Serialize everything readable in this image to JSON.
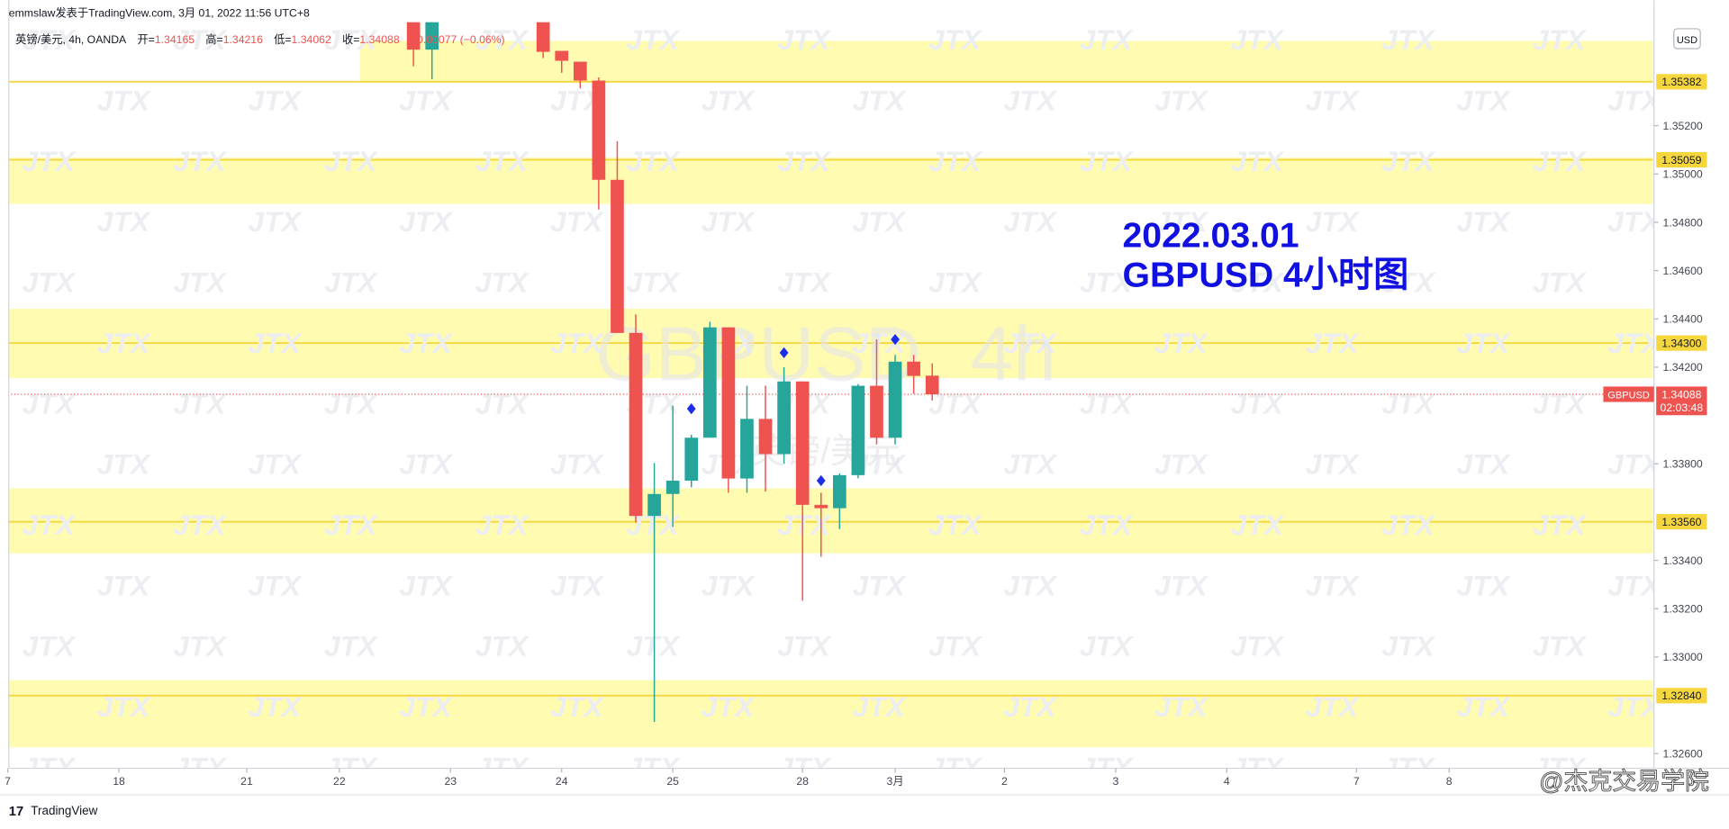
{
  "chart_data": {
    "type": "candlestick",
    "header": "emmslaw发表于TradingView.com, 3月 01, 2022 11:56 UTC+8",
    "legend": {
      "symbol": "英镑/美元, 4h, OANDA",
      "items": [
        {
          "label": "开=",
          "value": 1.34165
        },
        {
          "label": "高=",
          "value": 1.34216
        },
        {
          "label": "低=",
          "value": 1.34062
        },
        {
          "label": "收=",
          "value": 1.34088
        }
      ],
      "change": "−0.00077 (−0.06%)"
    },
    "annotation": [
      "2022.03.01",
      "GBPUSD 4小时图"
    ],
    "annotation_color": "#1010e0",
    "watermark_symbol": "GBPUSD",
    "watermark_interval": "4h",
    "watermark_name": "英镑/美元",
    "watermark_pattern": "JTX",
    "currency": "USD",
    "up_color": "#26a69a",
    "down_color": "#ef5350",
    "x": [
      21.9,
      22.9,
      28.9,
      29.9,
      30.9,
      31.9,
      32.9,
      33.9,
      34.9,
      35.9,
      36.9,
      37.9,
      38.9,
      39.9,
      40.9,
      41.9,
      42.9,
      43.9,
      44.9,
      45.9,
      46.9,
      47.9,
      48.9,
      49.9
    ],
    "open": [
      1.35629,
      1.35515,
      1.35629,
      1.3551,
      1.35465,
      1.35387,
      1.34976,
      1.34342,
      1.33584,
      1.33675,
      1.3373,
      1.33908,
      1.34365,
      1.33739,
      1.33986,
      1.3384,
      1.34141,
      1.3363,
      1.33616,
      1.33753,
      1.34123,
      1.33908,
      1.34223,
      1.34165
    ],
    "high": [
      1.35629,
      1.35629,
      1.35629,
      1.3551,
      1.35465,
      1.354,
      1.35136,
      1.34419,
      1.33803,
      1.34041,
      1.3392,
      1.34388,
      1.34365,
      1.34123,
      1.34123,
      1.342,
      1.34141,
      1.3368,
      1.3376,
      1.3413,
      1.34315,
      1.34251,
      1.34251,
      1.34216
    ],
    "low": [
      1.35446,
      1.35392,
      1.3548,
      1.35419,
      1.35355,
      1.34853,
      1.34342,
      1.33557,
      1.32731,
      1.33539,
      1.33703,
      1.33908,
      1.3368,
      1.3368,
      1.33685,
      1.338,
      1.33233,
      1.33415,
      1.3353,
      1.3374,
      1.3388,
      1.3388,
      1.3409,
      1.34062
    ],
    "close": [
      1.35515,
      1.35629,
      1.35506,
      1.35469,
      1.35387,
      1.34976,
      1.34342,
      1.33584,
      1.33675,
      1.3373,
      1.33908,
      1.34365,
      1.33739,
      1.33986,
      1.3384,
      1.34141,
      1.3363,
      1.33616,
      1.33753,
      1.34123,
      1.33908,
      1.34223,
      1.34164,
      1.34088
    ],
    "markers": {
      "color": "#1a2ee8",
      "x": [
        36.9,
        41.9,
        43.9,
        47.9
      ],
      "y": [
        1.34028,
        1.3426,
        1.3373,
        1.34315
      ]
    },
    "zone_color": "#fffbb0",
    "level_color": "#f5d63d",
    "zones": [
      {
        "from": 19.0,
        "low": 1.35378,
        "high": 1.35551
      },
      {
        "from": 0,
        "low": 1.34876,
        "high": 1.35068
      },
      {
        "from": 0,
        "low": 1.34155,
        "high": 1.34442
      },
      {
        "from": 0,
        "low": 1.33429,
        "high": 1.33698
      },
      {
        "from": 0,
        "low": 1.32626,
        "high": 1.32904
      }
    ],
    "levels": [
      1.35382,
      1.35059,
      {
        "value": 1.343,
        "label": "1.34300"
      },
      {
        "value": 1.3356,
        "label": "1.33560"
      },
      {
        "value": 1.3284,
        "label": "1.32840"
      }
    ],
    "last_price": {
      "symbol": "GBPUSD",
      "value": 1.34088,
      "countdown": "02:03:48"
    },
    "xlim": [
      0,
      88.8
    ],
    "xticks": [
      {
        "value": 0,
        "label": "7"
      },
      {
        "value": 6.0,
        "label": "18"
      },
      {
        "value": 12.9,
        "label": "21"
      },
      {
        "value": 17.9,
        "label": "22"
      },
      {
        "value": 23.9,
        "label": "23"
      },
      {
        "value": 29.9,
        "label": "24"
      },
      {
        "value": 35.9,
        "label": "25"
      },
      {
        "value": 42.9,
        "label": "28"
      },
      {
        "value": 47.9,
        "label": "3月"
      },
      {
        "value": 53.8,
        "label": "2"
      },
      {
        "value": 59.8,
        "label": "3"
      },
      {
        "value": 65.8,
        "label": "4"
      },
      {
        "value": 72.8,
        "label": "7"
      },
      {
        "value": 77.8,
        "label": "8"
      }
    ],
    "ylim": [
      1.32539,
      1.35629
    ],
    "yticks": [
      {
        "value": 1.326,
        "label": "1.32600"
      },
      {
        "value": 1.33,
        "label": "1.33000"
      },
      {
        "value": 1.332,
        "label": "1.33200"
      },
      {
        "value": 1.334,
        "label": "1.33400"
      },
      {
        "value": 1.338,
        "label": "1.33800"
      },
      {
        "value": 1.342,
        "label": "1.34200"
      },
      {
        "value": 1.344,
        "label": "1.34400"
      },
      {
        "value": 1.346,
        "label": "1.34600"
      },
      {
        "value": 1.348,
        "label": "1.34800"
      },
      {
        "value": 1.35,
        "label": "1.35000"
      },
      {
        "value": 1.352,
        "label": "1.35200"
      }
    ],
    "brand": "TradingView",
    "credit": "@杰克交易学院"
  }
}
